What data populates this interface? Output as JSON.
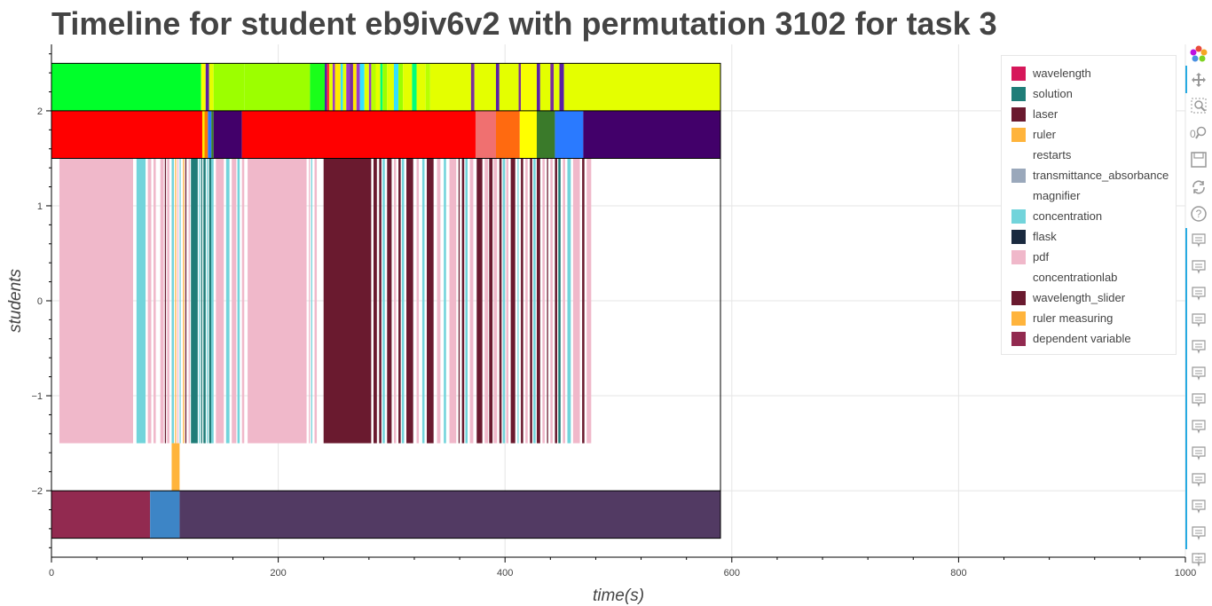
{
  "title": "Timeline for student eb9iv6v2 with permutation 3102 for task 3",
  "chart_data": {
    "type": "timeline",
    "xlabel": "time(s)",
    "ylabel": "students",
    "xlim": [
      0,
      1000
    ],
    "ylim": [
      -2.7,
      2.7
    ],
    "xticks": [
      0,
      200,
      400,
      600,
      800,
      1000
    ],
    "yticks": [
      -2,
      -1,
      0,
      1,
      2
    ],
    "xtick_labels": [
      "0",
      "200",
      "400",
      "600",
      "800",
      "1000"
    ],
    "ytick_labels": [
      "−2",
      "−1",
      "0",
      "1",
      "2"
    ],
    "grid": true,
    "frame_x_end": 590,
    "legend_position": "top-right",
    "legend": [
      {
        "label": "wavelength",
        "color": "#d6175a"
      },
      {
        "label": "solution",
        "color": "#1f7d78"
      },
      {
        "label": "laser",
        "color": "#6a1a2f"
      },
      {
        "label": "ruler",
        "color": "#ffb43c"
      },
      {
        "label": "restarts",
        "color": "#ffffff"
      },
      {
        "label": "transmittance_absorbance",
        "color": "#9aa8bb"
      },
      {
        "label": "magnifier",
        "color": "#ffffff"
      },
      {
        "label": "concentration",
        "color": "#72d4db"
      },
      {
        "label": "flask",
        "color": "#1a2a3f"
      },
      {
        "label": "pdf",
        "color": "#f0b8ca"
      },
      {
        "label": "concentrationlab",
        "color": "#ffffff"
      },
      {
        "label": "wavelength_slider",
        "color": "#6a1a2f"
      },
      {
        "label": "ruler measuring",
        "color": "#ffb43c"
      },
      {
        "label": "dependent variable",
        "color": "#922a50"
      }
    ],
    "bands": [
      {
        "y0": 2.0,
        "y1": 2.5,
        "segments": [
          {
            "start": 0,
            "end": 132,
            "color": "#00ff2a"
          },
          {
            "start": 132,
            "end": 136,
            "color": "#f6ff00"
          },
          {
            "start": 136,
            "end": 139,
            "color": "#5a1fa6"
          },
          {
            "start": 139,
            "end": 143,
            "color": "#e4ff00"
          },
          {
            "start": 143,
            "end": 170,
            "color": "#9cff00"
          },
          {
            "start": 170,
            "end": 228,
            "color": "#9cff00"
          },
          {
            "start": 228,
            "end": 241,
            "color": "#1aff1a"
          },
          {
            "start": 241,
            "end": 243,
            "color": "#5a1fa6"
          },
          {
            "start": 243,
            "end": 245,
            "color": "#ff3232"
          },
          {
            "start": 245,
            "end": 248,
            "color": "#e4ff00"
          },
          {
            "start": 248,
            "end": 250,
            "color": "#9c3ac6"
          },
          {
            "start": 250,
            "end": 255,
            "color": "#ffea00"
          },
          {
            "start": 255,
            "end": 257,
            "color": "#33e1ff"
          },
          {
            "start": 257,
            "end": 260,
            "color": "#e4ff00"
          },
          {
            "start": 260,
            "end": 263,
            "color": "#9c3ac6"
          },
          {
            "start": 263,
            "end": 266,
            "color": "#7a2e9a"
          },
          {
            "start": 266,
            "end": 269,
            "color": "#ffea00"
          },
          {
            "start": 269,
            "end": 272,
            "color": "#9c3ac6"
          },
          {
            "start": 272,
            "end": 276,
            "color": "#33e1ff"
          },
          {
            "start": 276,
            "end": 280,
            "color": "#e4ff00"
          },
          {
            "start": 280,
            "end": 282,
            "color": "#9c3ac6"
          },
          {
            "start": 282,
            "end": 286,
            "color": "#b8ff00"
          },
          {
            "start": 286,
            "end": 290,
            "color": "#e4ff00"
          },
          {
            "start": 290,
            "end": 292,
            "color": "#00ff7a"
          },
          {
            "start": 292,
            "end": 296,
            "color": "#9cff00"
          },
          {
            "start": 296,
            "end": 302,
            "color": "#e4ff00"
          },
          {
            "start": 302,
            "end": 306,
            "color": "#33e1ff"
          },
          {
            "start": 306,
            "end": 310,
            "color": "#9cff00"
          },
          {
            "start": 310,
            "end": 318,
            "color": "#e4ff00"
          },
          {
            "start": 318,
            "end": 322,
            "color": "#00ff7a"
          },
          {
            "start": 322,
            "end": 330,
            "color": "#e4ff00"
          },
          {
            "start": 330,
            "end": 334,
            "color": "#b8ff00"
          },
          {
            "start": 334,
            "end": 370,
            "color": "#e4ff00"
          },
          {
            "start": 370,
            "end": 373,
            "color": "#7a2e9a"
          },
          {
            "start": 373,
            "end": 392,
            "color": "#e4ff00"
          },
          {
            "start": 392,
            "end": 395,
            "color": "#5a1fa6"
          },
          {
            "start": 395,
            "end": 412,
            "color": "#e4ff00"
          },
          {
            "start": 412,
            "end": 414,
            "color": "#7a2e9a"
          },
          {
            "start": 414,
            "end": 428,
            "color": "#f6ff00"
          },
          {
            "start": 428,
            "end": 431,
            "color": "#5a1fa6"
          },
          {
            "start": 431,
            "end": 440,
            "color": "#e4ff00"
          },
          {
            "start": 440,
            "end": 443,
            "color": "#7a2e9a"
          },
          {
            "start": 443,
            "end": 448,
            "color": "#e4ff00"
          },
          {
            "start": 448,
            "end": 452,
            "color": "#5a1fa6"
          },
          {
            "start": 452,
            "end": 590,
            "color": "#e4ff00"
          }
        ]
      },
      {
        "y0": 1.5,
        "y1": 2.0,
        "segments": [
          {
            "start": 0,
            "end": 133,
            "color": "#ff0000"
          },
          {
            "start": 133,
            "end": 135,
            "color": "#ffea00"
          },
          {
            "start": 135,
            "end": 138,
            "color": "#ff7a00"
          },
          {
            "start": 138,
            "end": 141,
            "color": "#2a7aff"
          },
          {
            "start": 141,
            "end": 143,
            "color": "#3a7a2a"
          },
          {
            "start": 143,
            "end": 168,
            "color": "#42006a"
          },
          {
            "start": 168,
            "end": 374,
            "color": "#ff0000"
          },
          {
            "start": 374,
            "end": 392,
            "color": "#f07070"
          },
          {
            "start": 392,
            "end": 413,
            "color": "#ff6a10"
          },
          {
            "start": 413,
            "end": 428,
            "color": "#ffff00"
          },
          {
            "start": 428,
            "end": 444,
            "color": "#3a7a2a"
          },
          {
            "start": 444,
            "end": 469,
            "color": "#2a7aff"
          },
          {
            "start": 469,
            "end": 590,
            "color": "#42006a"
          }
        ]
      },
      {
        "y0": -1.5,
        "y1": 1.5,
        "segments": [
          {
            "start": 7,
            "end": 72,
            "color": "#f0b8ca"
          },
          {
            "start": 75,
            "end": 83,
            "color": "#72d4db"
          },
          {
            "start": 85,
            "end": 88,
            "color": "#f0b8ca"
          },
          {
            "start": 90,
            "end": 92,
            "color": "#f0b8ca"
          },
          {
            "start": 96,
            "end": 99,
            "color": "#f0b8ca"
          },
          {
            "start": 100,
            "end": 101,
            "color": "#6a1a2f"
          },
          {
            "start": 102,
            "end": 104,
            "color": "#f0b8ca"
          },
          {
            "start": 106,
            "end": 108,
            "color": "#72d4db"
          },
          {
            "start": 109,
            "end": 110,
            "color": "#ffb43c"
          },
          {
            "start": 111,
            "end": 112,
            "color": "#f0b8ca"
          },
          {
            "start": 113,
            "end": 114,
            "color": "#72d4db"
          },
          {
            "start": 116,
            "end": 117,
            "color": "#ffb43c"
          },
          {
            "start": 118,
            "end": 119,
            "color": "#6a1a2f"
          },
          {
            "start": 121,
            "end": 122,
            "color": "#f0b8ca"
          },
          {
            "start": 123,
            "end": 129,
            "color": "#1f7d78"
          },
          {
            "start": 130,
            "end": 131,
            "color": "#72d4db"
          },
          {
            "start": 132,
            "end": 133,
            "color": "#1f7d78"
          },
          {
            "start": 134,
            "end": 136,
            "color": "#1f7d78"
          },
          {
            "start": 137,
            "end": 138,
            "color": "#72d4db"
          },
          {
            "start": 139,
            "end": 141,
            "color": "#1f7d78"
          },
          {
            "start": 141,
            "end": 143,
            "color": "#72d4db"
          },
          {
            "start": 145,
            "end": 152,
            "color": "#f0b8ca"
          },
          {
            "start": 154,
            "end": 157,
            "color": "#72d4db"
          },
          {
            "start": 159,
            "end": 163,
            "color": "#f0b8ca"
          },
          {
            "start": 164,
            "end": 166,
            "color": "#72d4db"
          },
          {
            "start": 168,
            "end": 170,
            "color": "#f0b8ca"
          },
          {
            "start": 173,
            "end": 225,
            "color": "#f0b8ca"
          },
          {
            "start": 227,
            "end": 228,
            "color": "#f0b8ca"
          },
          {
            "start": 229,
            "end": 230,
            "color": "#72d4db"
          },
          {
            "start": 232,
            "end": 234,
            "color": "#f0b8ca"
          },
          {
            "start": 240,
            "end": 282,
            "color": "#6a1a2f"
          },
          {
            "start": 284,
            "end": 287,
            "color": "#6a1a2f"
          },
          {
            "start": 289,
            "end": 291,
            "color": "#6a1a2f"
          },
          {
            "start": 292,
            "end": 294,
            "color": "#72d4db"
          },
          {
            "start": 296,
            "end": 300,
            "color": "#6a1a2f"
          },
          {
            "start": 302,
            "end": 304,
            "color": "#f0b8ca"
          },
          {
            "start": 306,
            "end": 308,
            "color": "#6a1a2f"
          },
          {
            "start": 309,
            "end": 311,
            "color": "#72d4db"
          },
          {
            "start": 313,
            "end": 319,
            "color": "#6a1a2f"
          },
          {
            "start": 322,
            "end": 324,
            "color": "#f0b8ca"
          },
          {
            "start": 327,
            "end": 329,
            "color": "#72d4db"
          },
          {
            "start": 331,
            "end": 337,
            "color": "#6a1a2f"
          },
          {
            "start": 340,
            "end": 343,
            "color": "#f0b8ca"
          },
          {
            "start": 346,
            "end": 348,
            "color": "#72d4db"
          },
          {
            "start": 351,
            "end": 357,
            "color": "#f0b8ca"
          },
          {
            "start": 359,
            "end": 360,
            "color": "#6a1a2f"
          },
          {
            "start": 362,
            "end": 364,
            "color": "#6a1a2f"
          },
          {
            "start": 365,
            "end": 367,
            "color": "#72d4db"
          },
          {
            "start": 369,
            "end": 372,
            "color": "#f0b8ca"
          },
          {
            "start": 375,
            "end": 380,
            "color": "#6a1a2f"
          },
          {
            "start": 382,
            "end": 385,
            "color": "#f0b8ca"
          },
          {
            "start": 386,
            "end": 389,
            "color": "#6a1a2f"
          },
          {
            "start": 390,
            "end": 393,
            "color": "#f0b8ca"
          },
          {
            "start": 395,
            "end": 397,
            "color": "#6a1a2f"
          },
          {
            "start": 398,
            "end": 400,
            "color": "#72d4db"
          },
          {
            "start": 401,
            "end": 403,
            "color": "#f0b8ca"
          },
          {
            "start": 405,
            "end": 409,
            "color": "#6a1a2f"
          },
          {
            "start": 411,
            "end": 412,
            "color": "#72d4db"
          },
          {
            "start": 414,
            "end": 416,
            "color": "#6a1a2f"
          },
          {
            "start": 418,
            "end": 420,
            "color": "#f0b8ca"
          },
          {
            "start": 422,
            "end": 424,
            "color": "#6a1a2f"
          },
          {
            "start": 425,
            "end": 427,
            "color": "#72d4db"
          },
          {
            "start": 428,
            "end": 431,
            "color": "#6a1a2f"
          },
          {
            "start": 433,
            "end": 435,
            "color": "#f0b8ca"
          },
          {
            "start": 437,
            "end": 438,
            "color": "#6a1a2f"
          },
          {
            "start": 440,
            "end": 442,
            "color": "#f0b8ca"
          },
          {
            "start": 444,
            "end": 446,
            "color": "#6a1a2f"
          },
          {
            "start": 447,
            "end": 449,
            "color": "#1f7d78"
          },
          {
            "start": 451,
            "end": 453,
            "color": "#f0b8ca"
          },
          {
            "start": 455,
            "end": 458,
            "color": "#72d4db"
          },
          {
            "start": 460,
            "end": 466,
            "color": "#f0b8ca"
          },
          {
            "start": 468,
            "end": 470,
            "color": "#6a1a2f"
          },
          {
            "start": 472,
            "end": 476,
            "color": "#f0b8ca"
          }
        ]
      },
      {
        "y0": -2.0,
        "y1": -1.5,
        "segments": [
          {
            "start": 106,
            "end": 113,
            "color": "#ffb43c"
          }
        ]
      },
      {
        "y0": -2.5,
        "y1": -2.0,
        "segments": [
          {
            "start": 0,
            "end": 87,
            "color": "#922a50"
          },
          {
            "start": 87,
            "end": 113,
            "color": "#3d85c6"
          },
          {
            "start": 113,
            "end": 590,
            "color": "#523a63"
          }
        ]
      }
    ]
  },
  "toolbar": {
    "tools": [
      "bokeh-logo-icon",
      "pan-icon",
      "box-zoom-icon",
      "wheel-zoom-icon",
      "save-icon",
      "reset-icon",
      "help-icon",
      "hover-icon",
      "hover-icon",
      "hover-icon",
      "hover-icon",
      "hover-icon",
      "hover-icon",
      "hover-icon",
      "hover-icon",
      "hover-icon",
      "hover-icon",
      "hover-icon",
      "hover-icon",
      "hover-icon"
    ],
    "more_label": "⋮"
  }
}
